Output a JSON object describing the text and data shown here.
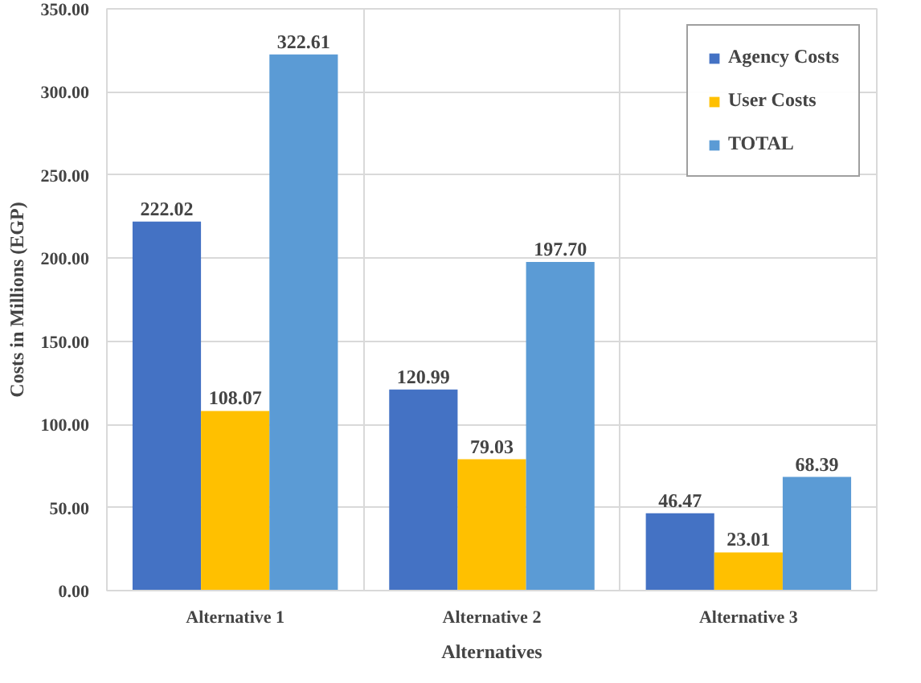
{
  "chart_data": {
    "type": "bar",
    "xlabel": "Alternatives",
    "ylabel": "Costs in Millions (EGP)",
    "categories": [
      "Alternative 1",
      "Alternative 2",
      "Alternative 3"
    ],
    "series": [
      {
        "name": "Agency Costs",
        "color": "#4472c4",
        "values": [
          222.02,
          120.99,
          46.47
        ],
        "value_labels": [
          "222.02",
          "120.99",
          "46.47"
        ]
      },
      {
        "name": "User Costs",
        "color": "#ffc000",
        "values": [
          108.07,
          79.03,
          23.01
        ],
        "value_labels": [
          "108.07",
          "79.03",
          "23.01"
        ]
      },
      {
        "name": "TOTAL",
        "color": "#5b9bd5",
        "values": [
          322.61,
          197.7,
          68.39
        ],
        "value_labels": [
          "322.61",
          "197.70",
          "68.39"
        ]
      }
    ],
    "ylim": [
      0,
      350
    ],
    "yticks": [
      {
        "value": 0,
        "label": "0.00"
      },
      {
        "value": 50,
        "label": "50.00"
      },
      {
        "value": 100,
        "label": "100.00"
      },
      {
        "value": 150,
        "label": "150.00"
      },
      {
        "value": 200,
        "label": "200.00"
      },
      {
        "value": 250,
        "label": "250.00"
      },
      {
        "value": 300,
        "label": "300.00"
      },
      {
        "value": 350,
        "label": "350.00"
      }
    ],
    "grid": true,
    "legend": "top right"
  }
}
